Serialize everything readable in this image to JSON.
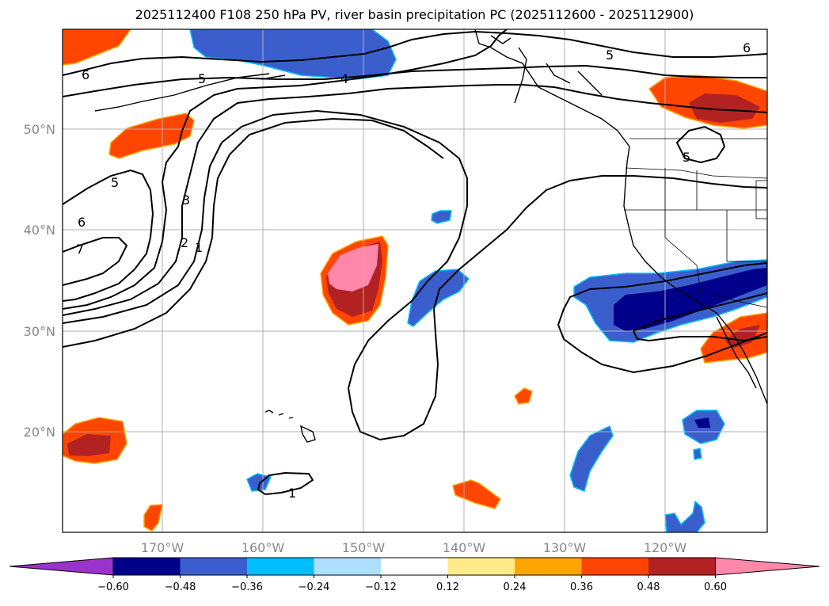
{
  "title": "2025112400 F108 250 hPa PV, river basin precipitation PC (2025112600 - 2025112900)",
  "lat_labels": [
    "50°N",
    "40°N",
    "30°N",
    "20°N"
  ],
  "lon_labels": [
    "170°W",
    "160°W",
    "150°W",
    "140°W",
    "130°W",
    "120°W"
  ],
  "contour_labels": [
    "6",
    "5",
    "4",
    "5",
    "6",
    "5",
    "3",
    "6",
    "7",
    "2",
    "1",
    "5",
    "1"
  ],
  "colorbar": {
    "ticks": [
      "−0.60",
      "−0.48",
      "−0.36",
      "−0.24",
      "−0.12",
      "0.12",
      "0.24",
      "0.36",
      "0.48",
      "0.60"
    ],
    "colors": [
      "#9933cc",
      "#00008b",
      "#3a5fcd",
      "#00bfff",
      "#afdfff",
      "#ffffff",
      "#ffe98a",
      "#ffa500",
      "#ff4500",
      "#b22222",
      "#ff88aa"
    ]
  }
}
